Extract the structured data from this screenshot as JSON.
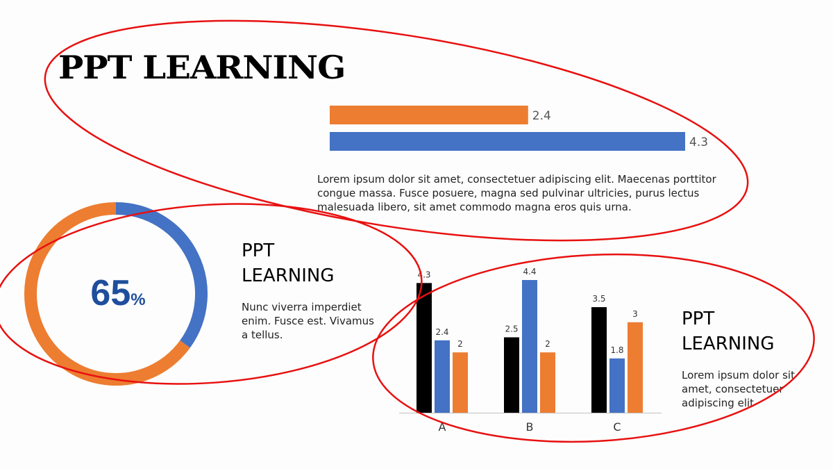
{
  "title": "PPT LEARNING",
  "top_section": {
    "text": "Lorem ipsum dolor sit amet, consectetuer adipiscing elit. Maecenas porttitor congue massa. Fusce posuere, magna sed pulvinar ultricies, purus lectus malesuada libero, sit amet commodo magna eros quis urna."
  },
  "left_section": {
    "heading": "PPT LEARNING",
    "text": "Nunc viverra imperdiet enim. Fusce est. Vivamus a tellus.",
    "donut_value": "65",
    "donut_unit": "%"
  },
  "right_section": {
    "heading": "PPT LEARNING",
    "text": "Lorem ipsum dolor sit amet, consectetuer adipiscing elit"
  },
  "colors": {
    "orange": "#ed7d31",
    "blue": "#4472c4",
    "black": "#000000",
    "annotation": "#e81010",
    "donut_text": "#1f4e9c"
  },
  "chart_data": [
    {
      "type": "bar",
      "orientation": "horizontal",
      "values": [
        2.4,
        4.3
      ],
      "colors": [
        "#ed7d31",
        "#4472c4"
      ],
      "data_labels": [
        "2.4",
        "4.3"
      ],
      "xlim": [
        0,
        4.3
      ]
    },
    {
      "type": "pie",
      "donut": true,
      "values": [
        35,
        65
      ],
      "colors": [
        "#4472c4",
        "#ed7d31"
      ]
    },
    {
      "type": "bar",
      "categories": [
        "A",
        "B",
        "C"
      ],
      "series": [
        {
          "values": [
            4.3,
            2.5,
            3.5
          ],
          "color": "#000000"
        },
        {
          "values": [
            2.4,
            4.4,
            1.8
          ],
          "color": "#4472c4"
        },
        {
          "values": [
            2,
            2,
            3
          ],
          "color": "#ed7d31"
        }
      ],
      "ylim": [
        0,
        4.4
      ],
      "grid": false
    }
  ]
}
